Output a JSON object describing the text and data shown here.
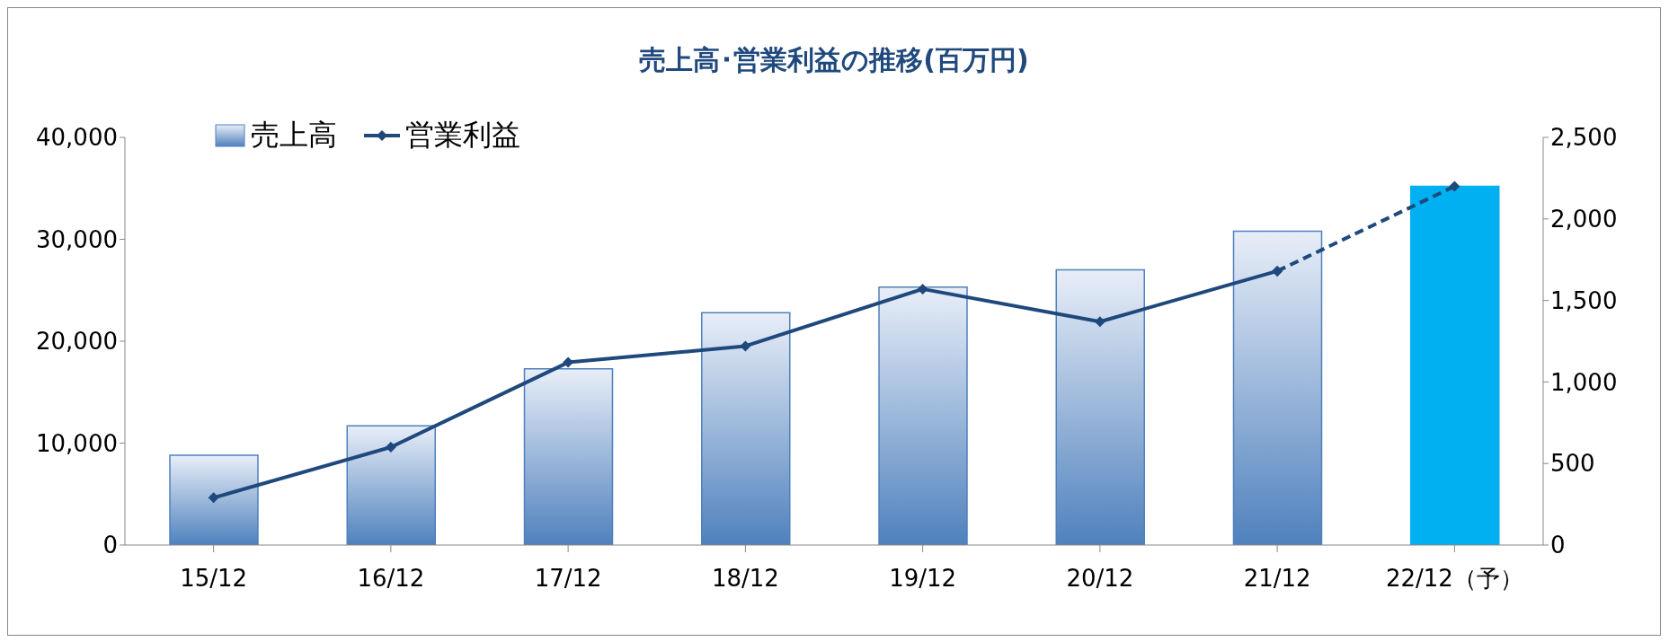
{
  "chart_data": {
    "type": "bar",
    "title": "売上高･営業利益の推移(百万円)",
    "categories": [
      "15/12",
      "16/12",
      "17/12",
      "18/12",
      "19/12",
      "20/12",
      "21/12",
      "22/12（予）"
    ],
    "series": [
      {
        "name": "売上高",
        "colors": [
          "#4f81bd",
          "#4f81bd",
          "#4f81bd",
          "#4f81bd",
          "#4f81bd",
          "#4f81bd",
          "#4f81bd",
          "#00b0f0"
        ],
        "values": [
          8800,
          11700,
          17300,
          22800,
          25300,
          27000,
          30800,
          35200
        ]
      },
      {
        "name": "営業利益",
        "type": "line",
        "axis": "y2",
        "color": "#1f497d",
        "line_style": "solid",
        "marker": "diamond",
        "values": [
          290,
          600,
          1120,
          1220,
          1570,
          1370,
          1680,
          null
        ]
      },
      {
        "type": "line",
        "axis": "y2",
        "color": "#1f497d",
        "line_style": "dashed",
        "marker": "diamond",
        "values": [
          null,
          null,
          null,
          null,
          null,
          null,
          1680,
          2200
        ]
      }
    ],
    "ylim": [
      0,
      40000
    ],
    "yticks": [
      0,
      {
        "value": 10000,
        "label": "10,000"
      },
      {
        "value": 20000,
        "label": "20,000"
      },
      {
        "value": 30000,
        "label": "30,000"
      },
      {
        "value": 40000,
        "label": "40,000"
      }
    ],
    "y2lim": [
      0,
      2500
    ],
    "y2ticks": [
      0,
      500,
      {
        "value": 1000,
        "label": "1,000"
      },
      {
        "value": 1500,
        "label": "1,500"
      },
      {
        "value": 2000,
        "label": "2,000"
      },
      {
        "value": 2500,
        "label": "2,500"
      }
    ],
    "grid": false,
    "legend": "top left"
  }
}
